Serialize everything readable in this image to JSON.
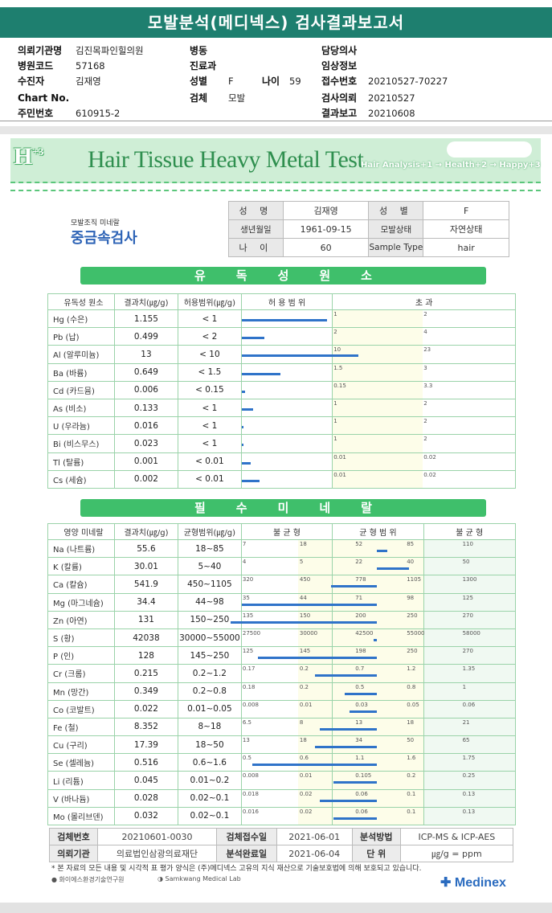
{
  "report_title": "모발분석(메디넥스) 검사결과보고서",
  "info": {
    "left": [
      {
        "label": "의뢰기관명",
        "value": "김진목파인힐의원"
      },
      {
        "label": "병원코드",
        "value": "57168"
      },
      {
        "label": "수진자",
        "value": "김재영"
      },
      {
        "label": "Chart No.",
        "value": ""
      },
      {
        "label": "주민번호",
        "value": "610915-2"
      }
    ],
    "mid": [
      {
        "label": "병동",
        "value": ""
      },
      {
        "label": "진료과",
        "value": ""
      },
      {
        "label": "성별",
        "value": "F"
      },
      {
        "label": "검체",
        "value": "모발"
      }
    ],
    "age": {
      "label": "나이",
      "value": "59"
    },
    "right": [
      {
        "label": "담당의사",
        "value": ""
      },
      {
        "label": "임상정보",
        "value": ""
      },
      {
        "label": "접수번호",
        "value": "20210527-70227"
      },
      {
        "label": "검사의뢰",
        "value": "20210527"
      },
      {
        "label": "결과보고",
        "value": "20210608"
      }
    ]
  },
  "banner": {
    "logo": "H",
    "logo_sup": "+3",
    "title": "Hair Tissue Heavy Metal Test",
    "sub": "Hair Analysis+1 → Health+2 → Happy+3"
  },
  "badge": {
    "small": "모발조직 미네랄",
    "big": "중금속검사"
  },
  "patient": {
    "name_label": "성 명",
    "name": "김재영",
    "sex_label": "성 별",
    "sex": "F",
    "dob_label": "생년월일",
    "dob": "1961-09-15",
    "state_label": "모발상태",
    "state": "자연상태",
    "age_label": "나 이",
    "age": "60",
    "type_label": "Sample Type",
    "type": "hair"
  },
  "toxic": {
    "section_title": "유독성원소",
    "headers": [
      "유독성 원소",
      "결과치(㎍/g)",
      "허용범위(㎍/g)",
      "허 용 범 위",
      "초 과"
    ],
    "rows": [
      {
        "name": "Hg (수은)",
        "result": "1.155",
        "range": "< 1",
        "t1": "1",
        "t2": "2",
        "frac": 0.95
      },
      {
        "name": "Pb (납)",
        "result": "0.499",
        "range": "< 2",
        "t1": "2",
        "t2": "4",
        "frac": 0.25
      },
      {
        "name": "Al (알루미늄)",
        "result": "13",
        "range": "< 10",
        "t1": "10",
        "t2": "23",
        "frac": 1.3
      },
      {
        "name": "Ba (바륨)",
        "result": "0.649",
        "range": "< 1.5",
        "t1": "1.5",
        "t2": "3",
        "frac": 0.43
      },
      {
        "name": "Cd (카드뮴)",
        "result": "0.006",
        "range": "< 0.15",
        "t1": "0.15",
        "t2": "3.3",
        "frac": 0.04
      },
      {
        "name": "As (비소)",
        "result": "0.133",
        "range": "< 1",
        "t1": "1",
        "t2": "2",
        "frac": 0.13
      },
      {
        "name": "U (우라늄)",
        "result": "0.016",
        "range": "< 1",
        "t1": "1",
        "t2": "2",
        "frac": 0.02
      },
      {
        "name": "Bi (비스무스)",
        "result": "0.023",
        "range": "< 1",
        "t1": "1",
        "t2": "2",
        "frac": 0.02
      },
      {
        "name": "Tl (탈륨)",
        "result": "0.001",
        "range": "< 0.01",
        "t1": "0.01",
        "t2": "0.02",
        "frac": 0.1
      },
      {
        "name": "Cs (세슘)",
        "result": "0.002",
        "range": "< 0.01",
        "t1": "0.01",
        "t2": "0.02",
        "frac": 0.2
      }
    ]
  },
  "essential": {
    "section_title": "필수미네랄",
    "headers": [
      "영양 미네랄",
      "결과치(㎍/g)",
      "균형범위(㎍/g)",
      "불 균 형",
      "균 형 범 위",
      "불 균 형"
    ],
    "rows": [
      {
        "name": "Na (나트륨)",
        "result": "55.6",
        "range": "18~85",
        "ticks": [
          "7",
          "18",
          "52",
          "85",
          "110"
        ],
        "from": 0.5,
        "to": 0.54
      },
      {
        "name": "K (칼륨)",
        "result": "30.01",
        "range": "5~40",
        "ticks": [
          "4",
          "5",
          "22",
          "40",
          "50"
        ],
        "from": 0.5,
        "to": 0.62
      },
      {
        "name": "Ca (칼슘)",
        "result": "541.9",
        "range": "450~1105",
        "ticks": [
          "320",
          "450",
          "778",
          "1105",
          "1300"
        ],
        "from": 0.33,
        "to": 0.5
      },
      {
        "name": "Mg (마그네슘)",
        "result": "34.4",
        "range": "44~98",
        "ticks": [
          "35",
          "44",
          "71",
          "98",
          "125"
        ],
        "from": 0.0,
        "to": 0.5
      },
      {
        "name": "Zn (아연)",
        "result": "131",
        "range": "150~250",
        "ticks": [
          "135",
          "150",
          "200",
          "250",
          "270"
        ],
        "from": -0.04,
        "to": 0.5
      },
      {
        "name": "S (황)",
        "result": "42038",
        "range": "30000~55000",
        "ticks": [
          "27500",
          "30000",
          "42500",
          "55000",
          "58000"
        ],
        "from": 0.49,
        "to": 0.5
      },
      {
        "name": "P (인)",
        "result": "128",
        "range": "145~250",
        "ticks": [
          "125",
          "145",
          "198",
          "250",
          "270"
        ],
        "from": 0.06,
        "to": 0.5
      },
      {
        "name": "Cr (크롬)",
        "result": "0.215",
        "range": "0.2~1.2",
        "ticks": [
          "0.17",
          "0.2",
          "0.7",
          "1.2",
          "1.35"
        ],
        "from": 0.27,
        "to": 0.5
      },
      {
        "name": "Mn (망간)",
        "result": "0.349",
        "range": "0.2~0.8",
        "ticks": [
          "0.18",
          "0.2",
          "0.5",
          "0.8",
          "1"
        ],
        "from": 0.38,
        "to": 0.5
      },
      {
        "name": "Co (코발트)",
        "result": "0.022",
        "range": "0.01~0.05",
        "ticks": [
          "0.008",
          "0.01",
          "0.03",
          "0.05",
          "0.06"
        ],
        "from": 0.4,
        "to": 0.5
      },
      {
        "name": "Fe (철)",
        "result": "8.352",
        "range": "8~18",
        "ticks": [
          "6.5",
          "8",
          "13",
          "18",
          "21"
        ],
        "from": 0.29,
        "to": 0.5
      },
      {
        "name": "Cu (구리)",
        "result": "17.39",
        "range": "18~50",
        "ticks": [
          "13",
          "18",
          "34",
          "50",
          "65"
        ],
        "from": 0.27,
        "to": 0.5
      },
      {
        "name": "Se (셀레늄)",
        "result": "0.516",
        "range": "0.6~1.6",
        "ticks": [
          "0.5",
          "0.6",
          "1.1",
          "1.6",
          "1.75"
        ],
        "from": 0.04,
        "to": 0.5
      },
      {
        "name": "Li (리튬)",
        "result": "0.045",
        "range": "0.01~0.2",
        "ticks": [
          "0.008",
          "0.01",
          "0.105",
          "0.2",
          "0.25"
        ],
        "from": 0.34,
        "to": 0.5
      },
      {
        "name": "V (바나듐)",
        "result": "0.028",
        "range": "0.02~0.1",
        "ticks": [
          "0.018",
          "0.02",
          "0.06",
          "0.1",
          "0.13"
        ],
        "from": 0.29,
        "to": 0.5
      },
      {
        "name": "Mo (몰리브덴)",
        "result": "0.032",
        "range": "0.02~0.1",
        "ticks": [
          "0.016",
          "0.02",
          "0.06",
          "0.1",
          "0.13"
        ],
        "from": 0.34,
        "to": 0.5
      }
    ]
  },
  "footer": {
    "r1": [
      "검체번호",
      "20210601-0030",
      "검체접수일",
      "2021-06-01",
      "분석방법",
      "ICP-MS & ICP-AES"
    ],
    "r2": [
      "의뢰기관",
      "의료법인삼광의료재단",
      "분석완료일",
      "2021-06-04",
      "단 위",
      "㎍/g = ppm"
    ],
    "note": "* 본 자료의 모든 내용 및 시각적 표 평가 양식은 (주)메디넥스 고유의 지식 재산으로 기술보호법에 의해 보호되고 있습니다.",
    "logo1": "화이에스환경기술연구원",
    "logo2": "Samkwang Medical Lab",
    "logo3": "Medinex"
  }
}
